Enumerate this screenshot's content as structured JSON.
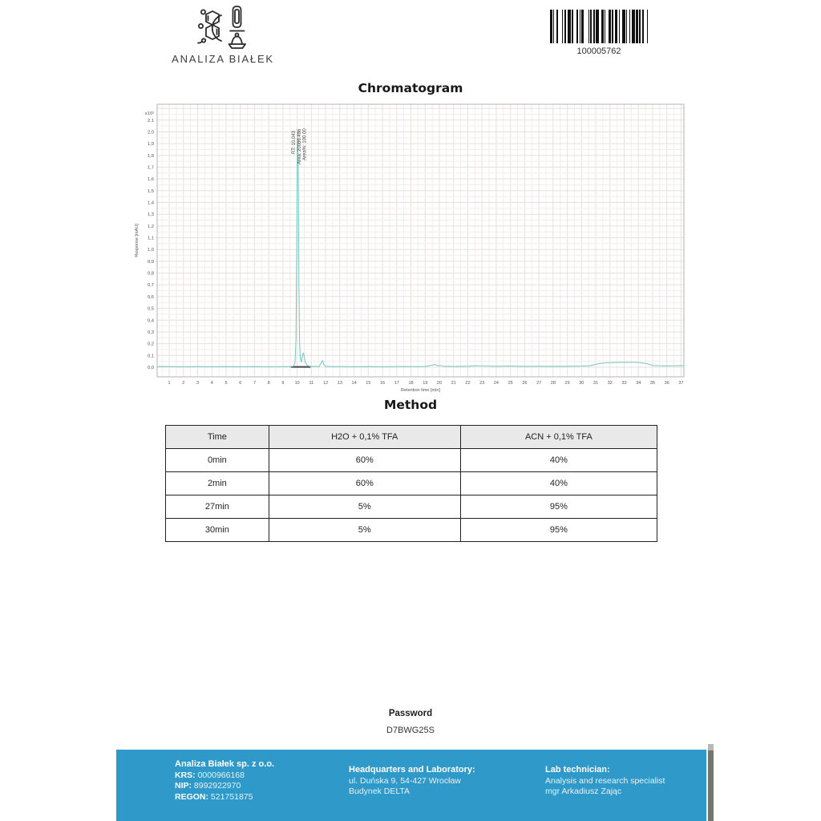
{
  "header": {
    "logo_text": "ANALIZA BIAŁEK",
    "barcode": {
      "value": "100005762",
      "pattern": "2112141121311321112411121132211321122112311211312112131"
    }
  },
  "chromatogram": {
    "title": "Chromatogram",
    "chart_data": {
      "type": "line",
      "title": "Chromatogram",
      "xlabel": "Retention time [min]",
      "ylabel": "Response [mAU]",
      "y_multiplier_label": "x10²",
      "xlim": [
        0.15,
        37.2
      ],
      "ylim": [
        -0.082,
        2.235
      ],
      "x_tick_min": 1,
      "x_tick_max": 37,
      "x_tick_step": 1,
      "y_tick_max": 2.1,
      "y_tick_step": 0.1,
      "y_tick_decimal_comma": true,
      "grid": true,
      "legend": "none",
      "line_color": "#7fccc4",
      "grid_minor_color": "#f4eceb",
      "grid_major_color": "#eadfde",
      "frame_color": "#b3b3b3",
      "peak": {
        "rt": 10.043,
        "height": 2.0,
        "area": 20086.486,
        "area_percent": 100.0
      },
      "peak_labels": [
        "RT: 10.043",
        "Area: 20086.486",
        "Area%: 100.00"
      ],
      "integration_baseline": {
        "from": 9.55,
        "to": 10.95,
        "color": "#454545"
      },
      "trace": [
        [
          0.15,
          0.005
        ],
        [
          1,
          0.005
        ],
        [
          2,
          0.004
        ],
        [
          3,
          0.005
        ],
        [
          4,
          0.004
        ],
        [
          5,
          0.005
        ],
        [
          6,
          0.004
        ],
        [
          7,
          0.005
        ],
        [
          8,
          0.004
        ],
        [
          9,
          0.005
        ],
        [
          9.4,
          0.005
        ],
        [
          9.6,
          0.006
        ],
        [
          9.75,
          0.01
        ],
        [
          9.85,
          0.04
        ],
        [
          9.92,
          0.25
        ],
        [
          9.97,
          1.0
        ],
        [
          10.01,
          1.85
        ],
        [
          10.043,
          2.0
        ],
        [
          10.08,
          1.6
        ],
        [
          10.12,
          0.7
        ],
        [
          10.17,
          0.2
        ],
        [
          10.22,
          0.07
        ],
        [
          10.3,
          0.04
        ],
        [
          10.38,
          0.11
        ],
        [
          10.45,
          0.12
        ],
        [
          10.55,
          0.05
        ],
        [
          10.7,
          0.015
        ],
        [
          10.9,
          0.008
        ],
        [
          11.2,
          0.006
        ],
        [
          11.55,
          0.006
        ],
        [
          11.7,
          0.04
        ],
        [
          11.78,
          0.055
        ],
        [
          11.88,
          0.02
        ],
        [
          12.0,
          0.007
        ],
        [
          12.5,
          0.005
        ],
        [
          13,
          0.005
        ],
        [
          14,
          0.004
        ],
        [
          15,
          0.005
        ],
        [
          16,
          0.004
        ],
        [
          17,
          0.005
        ],
        [
          18,
          0.005
        ],
        [
          19,
          0.006
        ],
        [
          19.4,
          0.015
        ],
        [
          19.65,
          0.022
        ],
        [
          19.9,
          0.012
        ],
        [
          20.1,
          0.014
        ],
        [
          20.3,
          0.008
        ],
        [
          21,
          0.006
        ],
        [
          22,
          0.008
        ],
        [
          22.5,
          0.012
        ],
        [
          23,
          0.01
        ],
        [
          24,
          0.008
        ],
        [
          25,
          0.009
        ],
        [
          26,
          0.007
        ],
        [
          27,
          0.008
        ],
        [
          28,
          0.007
        ],
        [
          29,
          0.008
        ],
        [
          30,
          0.009
        ],
        [
          30.6,
          0.012
        ],
        [
          31.2,
          0.03
        ],
        [
          31.8,
          0.038
        ],
        [
          32.5,
          0.04
        ],
        [
          33.2,
          0.042
        ],
        [
          34,
          0.04
        ],
        [
          34.6,
          0.03
        ],
        [
          35,
          0.015
        ],
        [
          35.5,
          0.012
        ],
        [
          36,
          0.011
        ],
        [
          36.6,
          0.012
        ],
        [
          37.2,
          0.013
        ]
      ]
    }
  },
  "method": {
    "title": "Method",
    "table": {
      "headers": [
        "Time",
        "H2O + 0,1% TFA",
        "ACN + 0,1% TFA"
      ],
      "rows": [
        [
          "0min",
          "60%",
          "40%"
        ],
        [
          "2min",
          "60%",
          "40%"
        ],
        [
          "27min",
          "5%",
          "95%"
        ],
        [
          "30min",
          "5%",
          "95%"
        ]
      ]
    }
  },
  "password": {
    "label": "Password",
    "value": "D7BWG25S"
  },
  "footer": {
    "company": {
      "name": "Analiza Białek sp. z o.o.",
      "krs_label": "KRS:",
      "krs": "0000966168",
      "nip_label": "NIP:",
      "nip": "8992922970",
      "regon_label": "REGON:",
      "regon": "521751875"
    },
    "headquarters": {
      "title": "Headquarters and Laboratory:",
      "line1": "ul. Duńska 9, 54-427 Wrocław",
      "line2": "Budynek DELTA"
    },
    "technician": {
      "title": "Lab technician:",
      "line1": "Analysis and research specialist",
      "line2": "mgr Arkadiusz Zając"
    }
  },
  "colors": {
    "footer_blue": "#2f99c9",
    "chart_line_teal": "#7fccc4",
    "barcode_black": "#111111",
    "table_header_bg": "#e9e9e9"
  }
}
